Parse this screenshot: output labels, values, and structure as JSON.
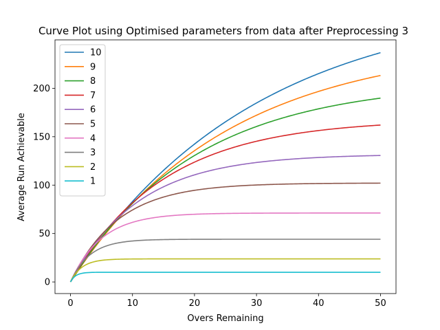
{
  "chart_data": {
    "type": "line",
    "title": "Curve Plot using Optimised parameters from data after Preprocessing 3",
    "xlabel": "Overs Remaining",
    "ylabel": "Average Run Achievable",
    "xlim": [
      -2.5,
      52.5
    ],
    "ylim": [
      -12,
      250
    ],
    "xticks": [
      0,
      10,
      20,
      30,
      40,
      50
    ],
    "yticks": [
      0,
      50,
      100,
      150,
      200
    ],
    "grid": false,
    "legend_position": "top-left",
    "series": [
      {
        "name": "10",
        "color": "#1f77b4",
        "z0": 291,
        "b": 0.0336
      },
      {
        "name": "9",
        "color": "#ff7f0e",
        "z0": 247,
        "b": 0.0398
      },
      {
        "name": "8",
        "color": "#2ca02c",
        "z0": 207,
        "b": 0.0498
      },
      {
        "name": "7",
        "color": "#d62728",
        "z0": 168,
        "b": 0.0667
      },
      {
        "name": "6",
        "color": "#9467bd",
        "z0": 132,
        "b": 0.0909
      },
      {
        "name": "5",
        "color": "#8c564b",
        "z0": 102.2,
        "b": 0.13
      },
      {
        "name": "4",
        "color": "#e377c2",
        "z0": 71.2,
        "b": 0.2
      },
      {
        "name": "3",
        "color": "#7f7f7f",
        "z0": 44.1,
        "b": 0.32
      },
      {
        "name": "2",
        "color": "#bcbd22",
        "z0": 23.8,
        "b": 0.55
      },
      {
        "name": "1",
        "color": "#17becf",
        "z0": 10.0,
        "b": 1.2
      }
    ]
  }
}
